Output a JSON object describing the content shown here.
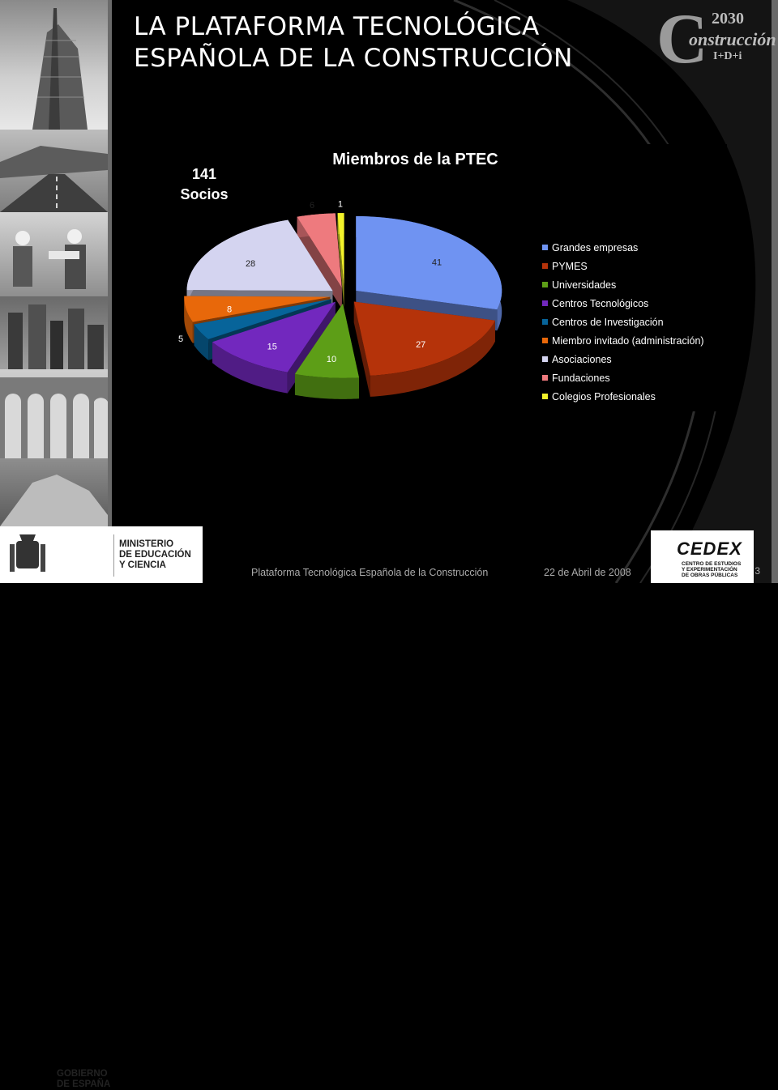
{
  "title": {
    "line1": "LA PLATAFORMA TECNOLÓGICA",
    "line2": "ESPAÑOLA DE LA CONSTRUCCIÓN"
  },
  "logo": {
    "year": "2030",
    "word": "onstrucción",
    "letter": "C",
    "sub": "I+D+i"
  },
  "socios": {
    "count": "141",
    "label": "Socios"
  },
  "footer": {
    "platform": "Plataforma Tecnológica Española de la Construcción",
    "date": "22 de Abril de 2008",
    "page": "3",
    "gov": {
      "gobierno": [
        "GOBIERNO",
        "DE ESPAÑA"
      ],
      "ministerio": [
        "MINISTERIO",
        "DE EDUCACIÓN",
        "Y CIENCIA"
      ]
    },
    "cedex": {
      "name": "CEDEX",
      "sub": [
        "CENTRO DE ESTUDIOS",
        "Y EXPERIMENTACIÓN",
        "DE OBRAS PÚBLICAS"
      ]
    }
  },
  "chart_data": {
    "type": "pie",
    "title": "Miembros de la PTEC",
    "categories": [
      "Grandes empresas",
      "PYMES",
      "Universidades",
      "Centros Tecnológicos",
      "Centros de Investigación",
      "Miembro invitado (administración)",
      "Asociaciones",
      "Fundaciones",
      "Colegios Profesionales"
    ],
    "values": [
      41,
      27,
      10,
      15,
      5,
      8,
      28,
      6,
      1
    ],
    "colors": [
      "#6f93f2",
      "#b5330a",
      "#5d9e17",
      "#7228be",
      "#07649a",
      "#e8680a",
      "#d4d4f0",
      "#ee7a7e",
      "#f2f22a"
    ],
    "legend_position": "right",
    "style": "3d-exploded"
  }
}
